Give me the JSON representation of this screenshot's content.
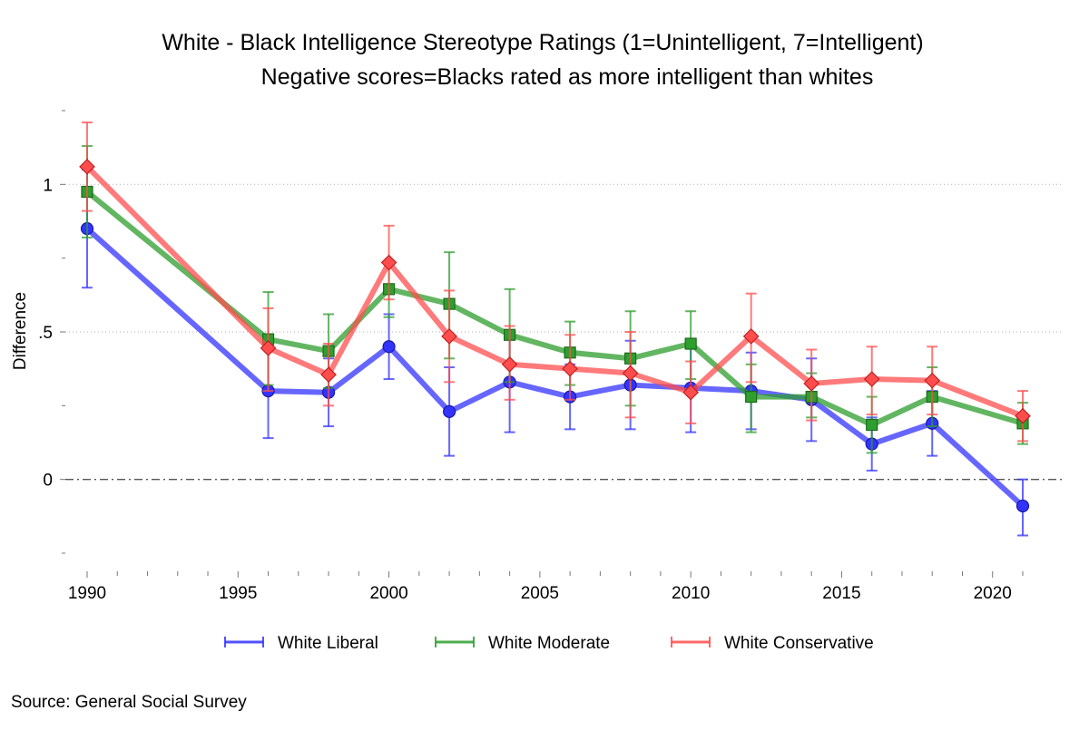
{
  "chart_data": {
    "type": "line",
    "title": "White - Black Intelligence Stereotype Ratings (1=Unintelligent, 7=Intelligent)",
    "subtitle": "Negative scores=Blacks rated as more intelligent than whites",
    "ylabel": "Difference",
    "xlabel": "",
    "source": "Source: General Social Survey",
    "xlim": [
      1990,
      2021
    ],
    "ylim": [
      -0.25,
      1.25
    ],
    "x_ticks": [
      1990,
      1995,
      2000,
      2005,
      2010,
      2015,
      2020
    ],
    "x_tick_labels": [
      "1990",
      "1995",
      "2000",
      "2005",
      "2010",
      "2015",
      "2020"
    ],
    "x_minor_ticks": [
      1991,
      1992,
      1993,
      1994,
      1996,
      1997,
      1998,
      1999,
      2001,
      2002,
      2003,
      2004,
      2006,
      2007,
      2008,
      2009,
      2011,
      2012,
      2013,
      2014,
      2016,
      2017,
      2018,
      2019,
      2021
    ],
    "y_ticks": [
      0,
      0.5,
      1
    ],
    "y_tick_labels": [
      "0",
      ".5",
      "1"
    ],
    "y_minor_ticks": [
      -0.25,
      0.25,
      0.75,
      1.25
    ],
    "gridlines_y": [
      0.5,
      1
    ],
    "reference_line_y": 0,
    "legend_position": "bottom",
    "series": [
      {
        "name": "White Liberal",
        "color": "#3333ff",
        "marker": "circle",
        "x": [
          1990,
          1996,
          1998,
          2000,
          2002,
          2004,
          2006,
          2008,
          2010,
          2012,
          2014,
          2016,
          2018,
          2021
        ],
        "y": [
          0.85,
          0.3,
          0.295,
          0.45,
          0.23,
          0.33,
          0.28,
          0.32,
          0.31,
          0.3,
          0.27,
          0.12,
          0.19,
          -0.09
        ],
        "ci_low": [
          0.65,
          0.14,
          0.18,
          0.34,
          0.08,
          0.16,
          0.17,
          0.17,
          0.16,
          0.17,
          0.13,
          0.03,
          0.08,
          -0.19
        ],
        "ci_high": [
          1.05,
          0.46,
          0.41,
          0.56,
          0.38,
          0.5,
          0.39,
          0.47,
          0.46,
          0.43,
          0.41,
          0.21,
          0.3,
          0.0
        ]
      },
      {
        "name": "White Moderate",
        "color": "#2e9e2e",
        "marker": "square",
        "x": [
          1990,
          1996,
          1998,
          2000,
          2002,
          2004,
          2006,
          2008,
          2010,
          2012,
          2014,
          2016,
          2018,
          2021
        ],
        "y": [
          0.975,
          0.475,
          0.435,
          0.645,
          0.595,
          0.49,
          0.43,
          0.41,
          0.46,
          0.28,
          0.28,
          0.185,
          0.28,
          0.19
        ],
        "ci_low": [
          0.82,
          0.32,
          0.31,
          0.55,
          0.41,
          0.33,
          0.32,
          0.25,
          0.34,
          0.16,
          0.21,
          0.09,
          0.18,
          0.12
        ],
        "ci_high": [
          1.13,
          0.635,
          0.56,
          0.74,
          0.77,
          0.645,
          0.535,
          0.57,
          0.57,
          0.39,
          0.36,
          0.28,
          0.38,
          0.26
        ]
      },
      {
        "name": "White Conservative",
        "color": "#ff4d4d",
        "marker": "diamond",
        "x": [
          1990,
          1996,
          1998,
          2000,
          2002,
          2004,
          2006,
          2008,
          2010,
          2012,
          2014,
          2016,
          2018,
          2021
        ],
        "y": [
          1.06,
          0.445,
          0.355,
          0.735,
          0.485,
          0.39,
          0.375,
          0.36,
          0.295,
          0.485,
          0.325,
          0.34,
          0.335,
          0.215
        ],
        "ci_low": [
          0.91,
          0.3,
          0.25,
          0.61,
          0.33,
          0.27,
          0.27,
          0.21,
          0.19,
          0.33,
          0.2,
          0.22,
          0.22,
          0.13
        ],
        "ci_high": [
          1.21,
          0.58,
          0.46,
          0.86,
          0.64,
          0.52,
          0.49,
          0.5,
          0.4,
          0.63,
          0.44,
          0.45,
          0.45,
          0.3
        ]
      }
    ]
  }
}
